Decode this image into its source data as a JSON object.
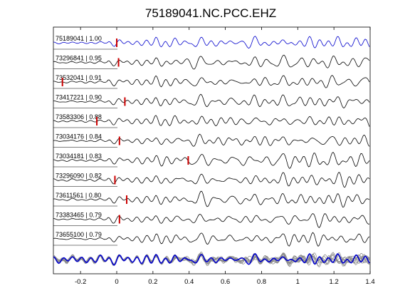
{
  "chart_data": {
    "type": "line",
    "title": "75189041.NC.PCC.EHZ",
    "xlim": [
      -0.35,
      1.4
    ],
    "x_ticks": [
      "-0.2",
      "0",
      "0.2",
      "0.4",
      "0.6",
      "0.8",
      "1",
      "1.2",
      "1.4"
    ],
    "x_tick_values": [
      -0.2,
      0,
      0.2,
      0.4,
      0.6,
      0.8,
      1.0,
      1.2,
      1.4
    ],
    "grid": false,
    "colors": {
      "reference": "#0000cc",
      "trace": "#000000",
      "pick": "#cc0000",
      "stack": "#888888"
    },
    "traces": [
      {
        "label": "75189041 | 1.00",
        "pick": 0.0,
        "reference": true
      },
      {
        "label": "73296841 | 0.95",
        "pick": 0.01
      },
      {
        "label": "73532041 | 0.91",
        "pick": -0.3
      },
      {
        "label": "73417221 | 0.90",
        "pick": 0.045
      },
      {
        "label": "73583306 | 0.88",
        "pick": -0.11
      },
      {
        "label": "73034176 | 0.84",
        "pick": 0.015
      },
      {
        "label": "73034181 | 0.83",
        "pick": 0.395
      },
      {
        "label": "73296090 | 0.82",
        "pick": -0.01
      },
      {
        "label": "73611561 | 0.80",
        "pick": 0.055
      },
      {
        "label": "73383465 | 0.79",
        "pick": 0.015
      },
      {
        "label": "73655100 | 0.79",
        "pick": null
      }
    ]
  }
}
